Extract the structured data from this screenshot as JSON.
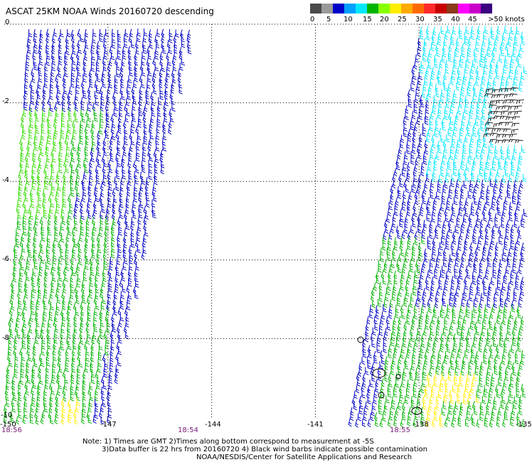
{
  "title": "ASCAT 25KM NOAA Winds 20160720 descending",
  "legend": {
    "unit": "knots",
    "colors": [
      "#4a4a4a",
      "#9a9a9a",
      "#0000c8",
      "#00a0ff",
      "#00e8ff",
      "#00b400",
      "#88ff00",
      "#ffee00",
      "#ffaa00",
      "#ff6a00",
      "#ff2a2a",
      "#c80000",
      "#8b3a1a",
      "#ff00ff",
      "#c800c8",
      "#3a0080"
    ],
    "labels": [
      "0",
      "5",
      "10",
      "15",
      "20",
      "25",
      "30",
      "35",
      "40",
      "45",
      ">50 knots"
    ]
  },
  "map": {
    "lon_range": [
      -150,
      -135
    ],
    "lat_range": [
      -10,
      0
    ],
    "grid_lons": [
      -147,
      -144,
      -141,
      -138
    ],
    "grid_lats": [
      -2,
      -4,
      -6,
      -8
    ],
    "y_labels": [
      "0",
      "-2",
      "-4",
      "-6",
      "-8",
      "-10"
    ],
    "x_labels": [
      "-150",
      "-147",
      "-144",
      "-141",
      "-138",
      "-135"
    ],
    "time_labels": [
      "18:56",
      "18:54",
      "18:55"
    ]
  },
  "notes": {
    "line1": "Note: 1) Times are GMT 2)Times along bottom correspond to measurement at -5S",
    "line2": "3)Data buffer is 22 hrs from 20160720 4) Black wind barbs indicate possible contamination",
    "line3": "NOAA/NESDIS/Center for Satellite Applications and Research"
  }
}
